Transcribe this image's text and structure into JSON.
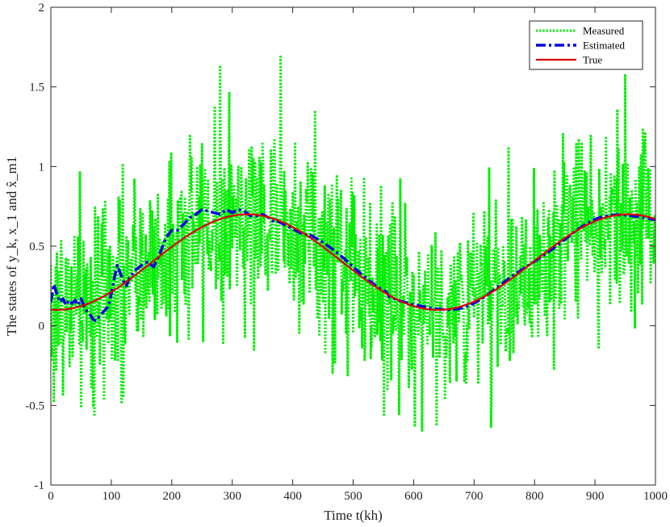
{
  "chart_data": {
    "type": "line",
    "title": "",
    "xlabel": "Time t(kh)",
    "ylabel": "The states of y_k, x_1 and x̂_m1",
    "xlim": [
      0,
      1000
    ],
    "ylim": [
      -1,
      2
    ],
    "x_ticks": [
      "0",
      "100",
      "200",
      "300",
      "400",
      "500",
      "600",
      "700",
      "800",
      "900",
      "1000"
    ],
    "y_ticks": [
      "-1",
      "-0.5",
      "0",
      "0.5",
      "1",
      "1.5",
      "2"
    ],
    "grid": false,
    "legend_position": "top-right",
    "true_signal": {
      "formula": "0.4 + 0.3*sin(2*pi*(t-10)/630 - pi/2)",
      "range": [
        0,
        1000
      ]
    },
    "series": [
      {
        "name": "Measured",
        "color": "#00ee00",
        "style": "dotted",
        "noise_std": 0.3,
        "notable_peaks": [
          [
            48,
            0.97
          ],
          [
            271,
            1.37
          ],
          [
            380,
            1.7
          ],
          [
            950,
            1.58
          ]
        ],
        "notable_troughs": [
          [
            70,
            -0.51
          ],
          [
            117,
            -0.49
          ],
          [
            551,
            -0.57
          ],
          [
            728,
            -0.64
          ]
        ]
      },
      {
        "name": "Estimated",
        "color": "#0000dd",
        "style": "dashdot",
        "x": [
          0,
          5,
          10,
          15,
          20,
          25,
          30,
          35,
          40,
          45,
          50,
          55,
          60,
          65,
          70,
          75,
          80,
          85,
          90,
          95,
          100,
          105,
          110,
          115,
          120,
          125,
          130,
          140,
          150,
          160,
          170,
          180,
          190,
          200,
          210,
          220,
          230,
          240,
          250,
          260,
          270,
          280,
          290,
          300,
          310,
          320,
          330,
          340,
          350,
          360,
          370
        ],
        "y": [
          0.15,
          0.26,
          0.2,
          0.15,
          0.17,
          0.13,
          0.16,
          0.14,
          0.16,
          0.13,
          0.17,
          0.12,
          0.09,
          0.07,
          0.04,
          0.03,
          0.06,
          0.08,
          0.1,
          0.12,
          0.2,
          0.3,
          0.38,
          0.33,
          0.28,
          0.25,
          0.3,
          0.35,
          0.38,
          0.4,
          0.37,
          0.45,
          0.55,
          0.6,
          0.6,
          0.64,
          0.68,
          0.7,
          0.73,
          0.72,
          0.71,
          0.7,
          0.73,
          0.71,
          0.73,
          0.72,
          0.69,
          0.69,
          0.7,
          0.68,
          0.65
        ]
      },
      {
        "name": "True",
        "color": "#dd0000",
        "style": "solid"
      }
    ]
  }
}
